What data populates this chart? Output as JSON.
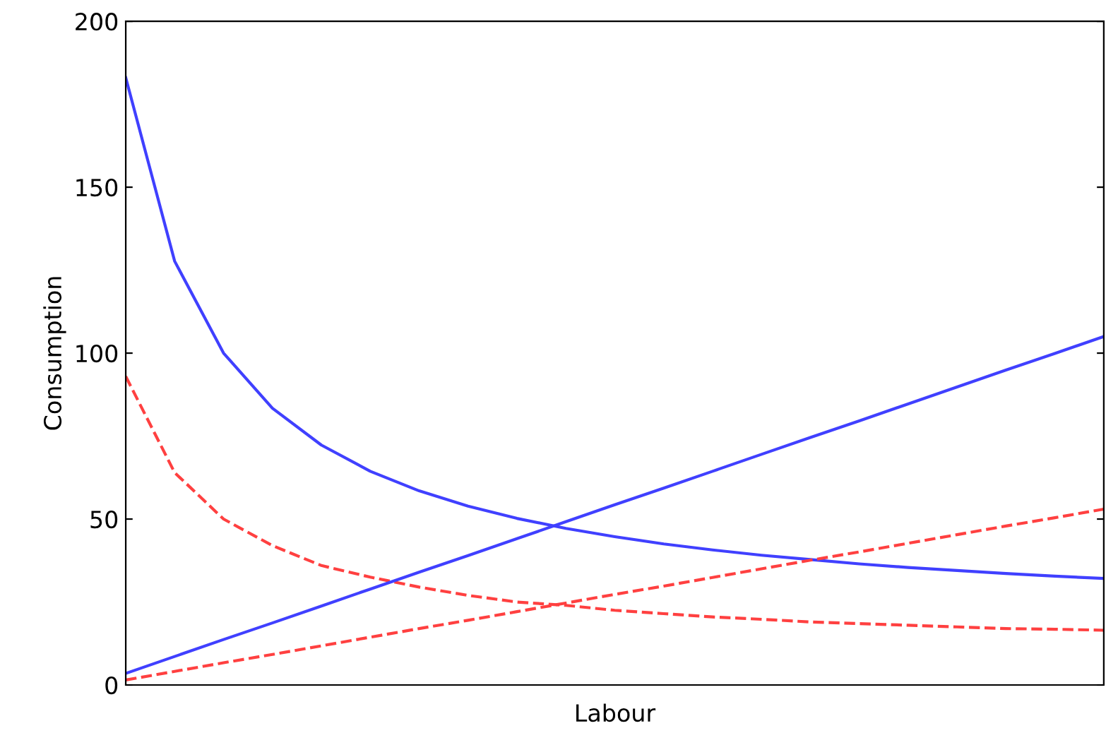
{
  "chart_data": {
    "type": "line",
    "xlabel": "Labour",
    "ylabel": "Consumption",
    "categories": [
      null,
      null,
      null,
      null,
      null,
      null,
      null,
      null,
      null,
      null,
      null,
      null,
      null,
      null,
      null,
      null,
      null,
      null,
      null,
      null,
      null
    ],
    "series": [
      {
        "color": "#4040ff",
        "line_style": "solid",
        "values": [
          183,
          127.7,
          100,
          83.4,
          72.3,
          64.4,
          58.5,
          53.9,
          50.2,
          47.2,
          44.7,
          42.5,
          40.7,
          39.1,
          37.8,
          36.5,
          35.4,
          34.5,
          33.6,
          32.8,
          32.1
        ]
      },
      {
        "color": "#ff4040",
        "line_style": "dashed",
        "values": [
          93,
          64,
          50,
          42,
          36,
          32.5,
          29.5,
          27,
          25,
          24,
          22.5,
          21.5,
          20.5,
          19.8,
          19,
          18.5,
          18,
          17.5,
          17,
          16.8,
          16.5
        ]
      },
      {
        "color": "#4040ff",
        "line_style": "solid",
        "values": [
          3.5,
          8.6,
          13.7,
          18.7,
          23.8,
          28.9,
          34,
          39,
          44.1,
          49.2,
          54.3,
          59.3,
          64.4,
          69.5,
          74.6,
          79.6,
          84.7,
          89.8,
          94.9,
          99.9,
          105
        ]
      },
      {
        "color": "#ff4040",
        "line_style": "dashed",
        "values": [
          1.5,
          4.1,
          6.7,
          9.2,
          11.8,
          14.4,
          17,
          19.5,
          22.1,
          24.7,
          27.3,
          29.8,
          32.4,
          35,
          37.6,
          40.1,
          42.7,
          45.3,
          47.9,
          50.4,
          53
        ]
      }
    ],
    "ylim": [
      0,
      200
    ],
    "yticks": [
      0,
      50,
      100,
      150,
      200
    ],
    "grid": false,
    "legend": false,
    "marker": "none"
  }
}
